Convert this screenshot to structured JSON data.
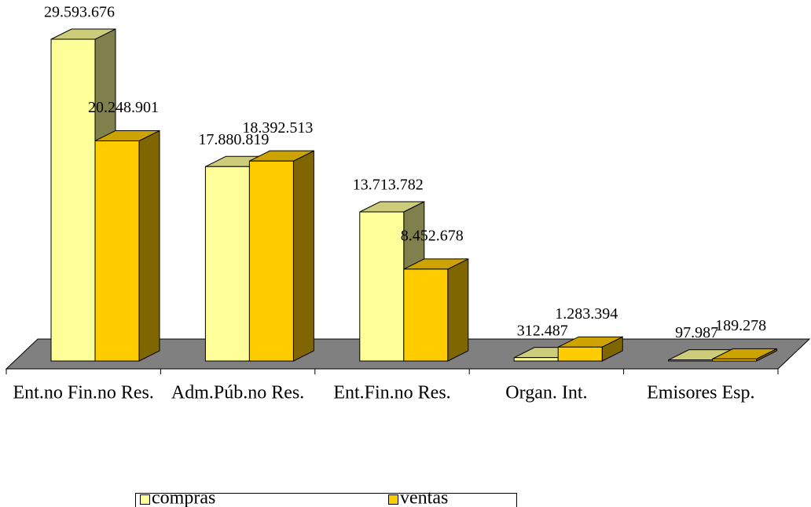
{
  "chart_data": {
    "type": "bar",
    "categories": [
      "Ent.no Fin.no Res.",
      "Adm.Púb.no Res.",
      "Ent.Fin.no Res.",
      "Organ. Int.",
      "Emisores Esp."
    ],
    "series": [
      {
        "name": "compras",
        "color": "#FFFF99",
        "values": [
          29593676,
          17880819,
          13713782,
          312487,
          97987
        ],
        "value_labels": [
          "29.593.676",
          "17.880.819",
          "13.713.782",
          "312.487",
          "97.987"
        ]
      },
      {
        "name": "ventas",
        "color": "#FFCC00",
        "values": [
          20248901,
          18392513,
          8452678,
          1283394,
          189278
        ],
        "value_labels": [
          "20.248.901",
          "18.392.513",
          "8.452.678",
          "1.283.394",
          "189.278"
        ]
      }
    ],
    "legend": "bottom"
  }
}
